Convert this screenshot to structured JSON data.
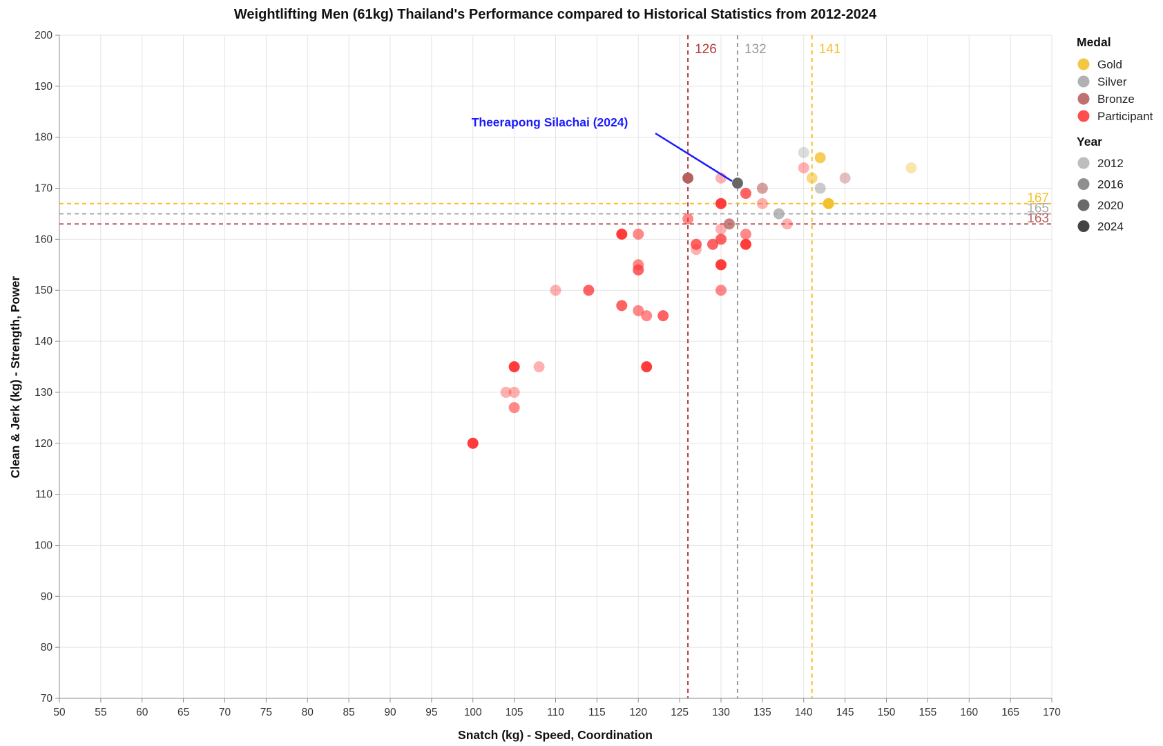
{
  "chart_data": {
    "type": "scatter",
    "title": "Weightlifting Men (61kg) Thailand's Performance compared to Historical Statistics from 2012-2024",
    "xlabel": "Snatch (kg) - Speed, Coordination",
    "ylabel": "Clean & Jerk (kg) - Strength, Power",
    "xlim": [
      50,
      170
    ],
    "ylim": [
      70,
      200
    ],
    "x_ticks": [
      50,
      55,
      60,
      65,
      70,
      75,
      80,
      85,
      90,
      95,
      100,
      105,
      110,
      115,
      120,
      125,
      130,
      135,
      140,
      145,
      150,
      155,
      160,
      165,
      170
    ],
    "y_ticks": [
      70,
      80,
      90,
      100,
      110,
      120,
      130,
      140,
      150,
      160,
      170,
      180,
      190,
      200
    ],
    "grid": true,
    "legend_placement": "right",
    "colors": {
      "Gold": "#f2c12e",
      "Silver": "#a8a8a8",
      "Bronze": "#b86060",
      "Participant": "#ff3b3b",
      "Highlight": "#666666"
    },
    "year_opacity": {
      "2012": 0.4,
      "2016": 0.6,
      "2020": 0.8,
      "2024": 1.0
    },
    "legend": {
      "medal_title": "Medal",
      "medal_items": [
        "Gold",
        "Silver",
        "Bronze",
        "Participant"
      ],
      "year_title": "Year",
      "year_items": [
        "2012",
        "2016",
        "2020",
        "2024"
      ],
      "year_colors": [
        "#bdbdbd",
        "#8f8f8f",
        "#6a6a6a",
        "#444444"
      ]
    },
    "reference_lines": {
      "vertical": [
        {
          "medal": "Bronze",
          "value": 126,
          "label": "126",
          "color": "#b03a3a"
        },
        {
          "medal": "Silver",
          "value": 132,
          "label": "132",
          "color": "#999999"
        },
        {
          "medal": "Gold",
          "value": 141,
          "label": "141",
          "color": "#f2c12e"
        }
      ],
      "horizontal": [
        {
          "medal": "Gold",
          "value": 167,
          "label": "167",
          "color": "#f2c12e"
        },
        {
          "medal": "Silver",
          "value": 165,
          "label": "165",
          "color": "#aaaaaa"
        },
        {
          "medal": "Bronze",
          "value": 163,
          "label": "163",
          "color": "#b86060"
        }
      ]
    },
    "annotation": {
      "text": "Theerapong Silachai (2024)",
      "x": 132,
      "y": 171,
      "color": "#1a1aff"
    },
    "points": [
      {
        "x": 100,
        "y": 120,
        "medal": "Participant",
        "year": "2024"
      },
      {
        "x": 104,
        "y": 130,
        "medal": "Participant",
        "year": "2012"
      },
      {
        "x": 105,
        "y": 130,
        "medal": "Participant",
        "year": "2012"
      },
      {
        "x": 105,
        "y": 127,
        "medal": "Participant",
        "year": "2016"
      },
      {
        "x": 105,
        "y": 135,
        "medal": "Participant",
        "year": "2024"
      },
      {
        "x": 108,
        "y": 135,
        "medal": "Participant",
        "year": "2012"
      },
      {
        "x": 110,
        "y": 150,
        "medal": "Participant",
        "year": "2012"
      },
      {
        "x": 114,
        "y": 150,
        "medal": "Participant",
        "year": "2020"
      },
      {
        "x": 118,
        "y": 161,
        "medal": "Participant",
        "year": "2024"
      },
      {
        "x": 118,
        "y": 147,
        "medal": "Participant",
        "year": "2020"
      },
      {
        "x": 120,
        "y": 161,
        "medal": "Participant",
        "year": "2016"
      },
      {
        "x": 120,
        "y": 155,
        "medal": "Participant",
        "year": "2016"
      },
      {
        "x": 120,
        "y": 154,
        "medal": "Participant",
        "year": "2020"
      },
      {
        "x": 120,
        "y": 146,
        "medal": "Participant",
        "year": "2016"
      },
      {
        "x": 121,
        "y": 145,
        "medal": "Participant",
        "year": "2016"
      },
      {
        "x": 121,
        "y": 135,
        "medal": "Participant",
        "year": "2024"
      },
      {
        "x": 123,
        "y": 145,
        "medal": "Participant",
        "year": "2020"
      },
      {
        "x": 126,
        "y": 164,
        "medal": "Participant",
        "year": "2016"
      },
      {
        "x": 127,
        "y": 158,
        "medal": "Participant",
        "year": "2012"
      },
      {
        "x": 127,
        "y": 159,
        "medal": "Participant",
        "year": "2020"
      },
      {
        "x": 129,
        "y": 159,
        "medal": "Participant",
        "year": "2020"
      },
      {
        "x": 130,
        "y": 172,
        "medal": "Participant",
        "year": "2012"
      },
      {
        "x": 130,
        "y": 167,
        "medal": "Participant",
        "year": "2024"
      },
      {
        "x": 130,
        "y": 162,
        "medal": "Participant",
        "year": "2012"
      },
      {
        "x": 130,
        "y": 160,
        "medal": "Participant",
        "year": "2020"
      },
      {
        "x": 130,
        "y": 155,
        "medal": "Participant",
        "year": "2024"
      },
      {
        "x": 130,
        "y": 150,
        "medal": "Participant",
        "year": "2016"
      },
      {
        "x": 133,
        "y": 169,
        "medal": "Participant",
        "year": "2020"
      },
      {
        "x": 133,
        "y": 161,
        "medal": "Participant",
        "year": "2016"
      },
      {
        "x": 133,
        "y": 159,
        "medal": "Participant",
        "year": "2024"
      },
      {
        "x": 135,
        "y": 167,
        "medal": "Participant",
        "year": "2012"
      },
      {
        "x": 138,
        "y": 163,
        "medal": "Participant",
        "year": "2012"
      },
      {
        "x": 140,
        "y": 174,
        "medal": "Participant",
        "year": "2012"
      },
      {
        "x": 126,
        "y": 172,
        "medal": "Bronze",
        "year": "2024"
      },
      {
        "x": 131,
        "y": 163,
        "medal": "Bronze",
        "year": "2020"
      },
      {
        "x": 135,
        "y": 170,
        "medal": "Bronze",
        "year": "2016"
      },
      {
        "x": 145,
        "y": 172,
        "medal": "Bronze",
        "year": "2012"
      },
      {
        "x": 132,
        "y": 171,
        "medal": "Silver",
        "year": "2024"
      },
      {
        "x": 137,
        "y": 165,
        "medal": "Silver",
        "year": "2020"
      },
      {
        "x": 140,
        "y": 177,
        "medal": "Silver",
        "year": "2012"
      },
      {
        "x": 142,
        "y": 170,
        "medal": "Silver",
        "year": "2016"
      },
      {
        "x": 141,
        "y": 172,
        "medal": "Gold",
        "year": "2016"
      },
      {
        "x": 142,
        "y": 176,
        "medal": "Gold",
        "year": "2020"
      },
      {
        "x": 143,
        "y": 167,
        "medal": "Gold",
        "year": "2024"
      },
      {
        "x": 153,
        "y": 174,
        "medal": "Gold",
        "year": "2012"
      }
    ]
  }
}
